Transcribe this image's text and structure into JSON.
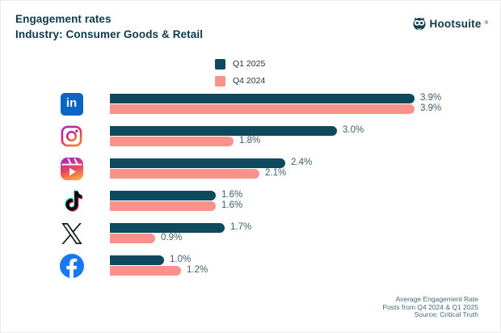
{
  "header": {
    "title": "Engagement rates",
    "subtitle": "Industry: Consumer Goods & Retail"
  },
  "logo": {
    "text": "Hootsuite",
    "registered": "®"
  },
  "legend": {
    "items": [
      {
        "label": "Q1 2025",
        "color": "#0e495e"
      },
      {
        "label": "Q4 2024",
        "color": "#fb918b"
      }
    ]
  },
  "chart_data": {
    "type": "bar",
    "orientation": "horizontal",
    "title": "Engagement rates",
    "subtitle": "Industry: Consumer Goods & Retail",
    "unit": "%",
    "grid": false,
    "legend_position": "top-center",
    "categories": [
      "LinkedIn",
      "Instagram",
      "Instagram Reels",
      "TikTok",
      "X",
      "Facebook"
    ],
    "series": [
      {
        "name": "Q1 2025",
        "color": "#0e495e",
        "values": [
          3.9,
          3.0,
          2.4,
          1.6,
          1.7,
          1.0
        ]
      },
      {
        "name": "Q4 2024",
        "color": "#fb918b",
        "values": [
          3.9,
          1.8,
          2.1,
          1.6,
          0.9,
          1.2
        ]
      }
    ],
    "value_labels": [
      [
        "3.9%",
        "3.0%",
        "2.4%",
        "1.6%",
        "1.7%",
        "1.0%"
      ],
      [
        "3.9%",
        "1.8%",
        "2.1%",
        "1.6%",
        "0.9%",
        "1.2%"
      ]
    ]
  },
  "footer": {
    "lines": [
      "Average Engagement Rate",
      "Posts from Q4 2024 & Q1 2025",
      "Source: Critical Truth"
    ]
  },
  "colors": {
    "title": "#0d3a4d",
    "value_label": "#3f5d69",
    "footer": "#4a6a74",
    "background": "#ffffff"
  }
}
